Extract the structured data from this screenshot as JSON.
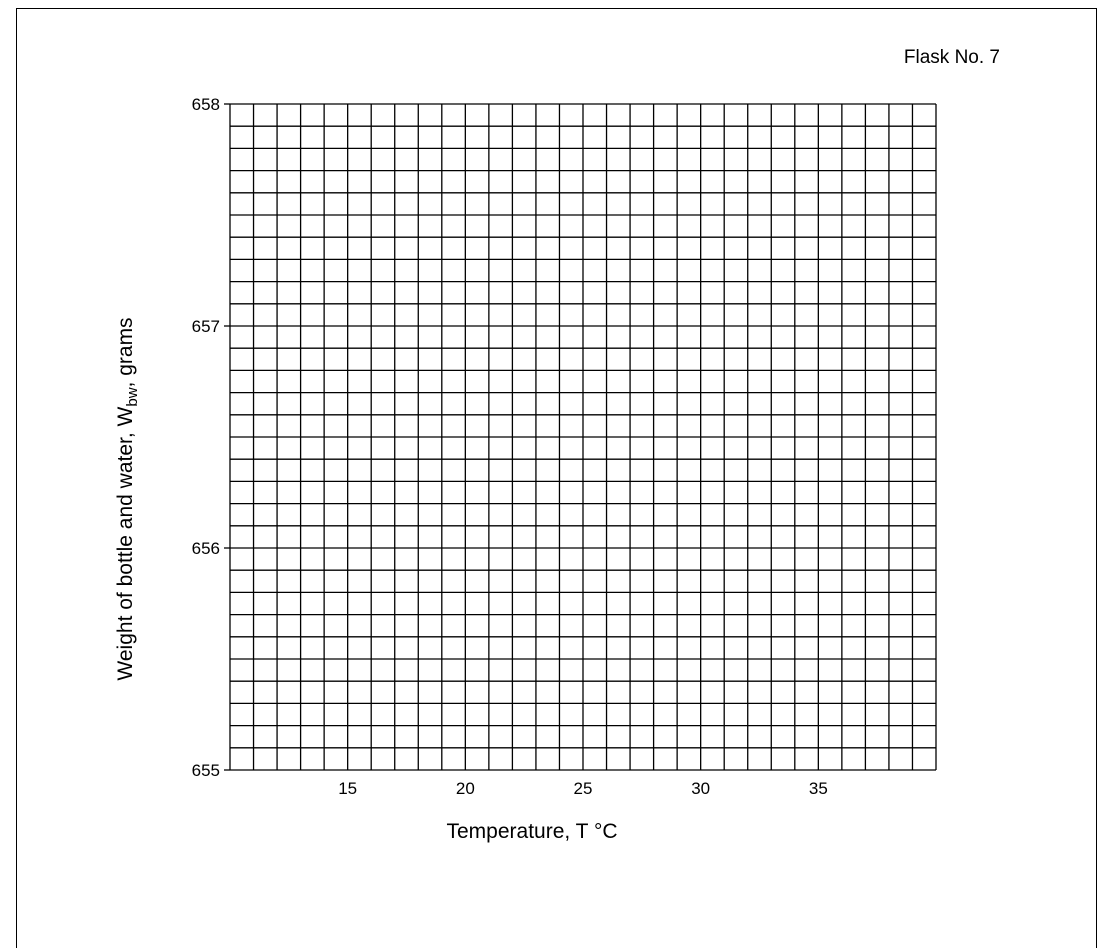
{
  "chart_data": {
    "type": "line",
    "title": "Flask No. 7",
    "xlabel": "Temperature, T °C",
    "ylabel_main": "Weight of bottle and water, W",
    "ylabel_sub": "bw",
    "ylabel_suffix": ", grams",
    "xlim": [
      10,
      40
    ],
    "ylim": [
      655,
      658
    ],
    "x_ticks": [
      15,
      20,
      25,
      30,
      35
    ],
    "y_ticks": [
      655,
      656,
      657,
      658
    ],
    "x_grid_step": 1,
    "y_grid_step": 0.1,
    "grid": true,
    "series": []
  }
}
